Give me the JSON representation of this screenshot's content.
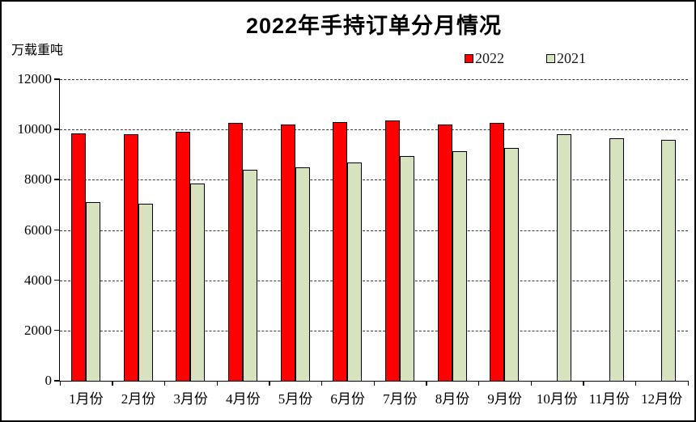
{
  "title": "2022年手持订单分月情况",
  "unit_label": "万载重吨",
  "legend": {
    "items": [
      {
        "label": "2022",
        "color": "#FF0000"
      },
      {
        "label": "2021",
        "color": "#D7E2BF"
      }
    ]
  },
  "chart_data": {
    "type": "bar",
    "title": "2022年手持订单分月情况",
    "ylabel": "万载重吨",
    "categories": [
      "1月份",
      "2月份",
      "3月份",
      "4月份",
      "5月份",
      "6月份",
      "7月份",
      "8月份",
      "9月份",
      "10月份",
      "11月份",
      "12月份"
    ],
    "series": [
      {
        "name": "2022",
        "color": "#FF0000",
        "values": [
          9850,
          9800,
          9900,
          10250,
          10200,
          10300,
          10350,
          10200,
          10250,
          null,
          null,
          null
        ]
      },
      {
        "name": "2021",
        "color": "#D7E2BF",
        "values": [
          7100,
          7050,
          7850,
          8400,
          8500,
          8700,
          8950,
          9150,
          9250,
          9800,
          9650,
          9600
        ]
      }
    ],
    "ylim": [
      0,
      12000
    ],
    "yticks": [
      0,
      2000,
      4000,
      6000,
      8000,
      10000,
      12000
    ],
    "grid": "horizontal-dashed",
    "legend_position": "top-right"
  }
}
